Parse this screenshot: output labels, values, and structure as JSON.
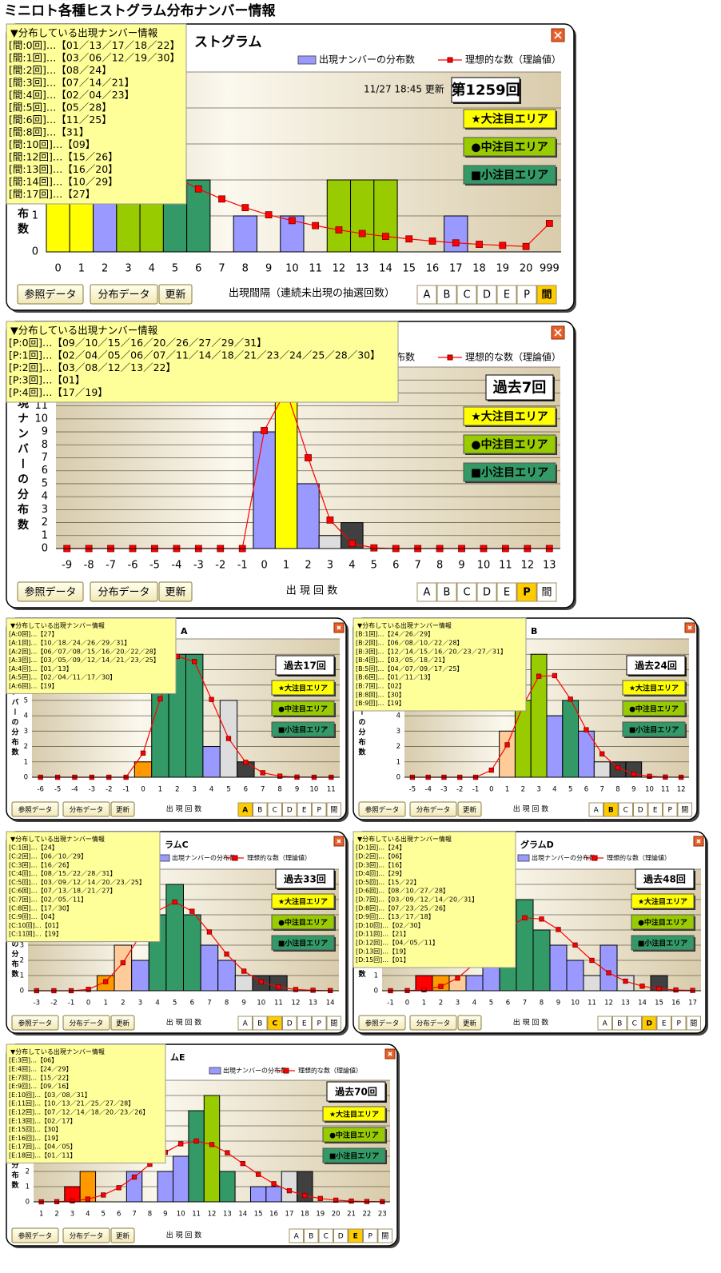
{
  "title": "ミニロト各種ヒストグラム分布ナンバー情報",
  "popup_title": "▼分布している出現ナンバー情報",
  "areas": [
    "★大注目エリア",
    "●中注目エリア",
    "■小注目エリア"
  ],
  "area_colors": [
    "#ffff00",
    "#99cc00",
    "#339966"
  ],
  "buttons": [
    "参照データ",
    "分布データ",
    "更新"
  ],
  "tabs": [
    "A",
    "B",
    "C",
    "D",
    "E",
    "P",
    "間"
  ],
  "chart_data": [
    {
      "type": "bar",
      "title": "ストグラム",
      "update": "11/27 18:45 更新",
      "badge": "第1259回",
      "active_tab": 6,
      "popup": [
        "[間:0回]…【01／13／17／18／22】",
        "[間:1回]…【03／06／12／19／30】",
        "[間:2回]…【08／24】",
        "[間:3回]…【07／14／21】",
        "[間:4回]…【02／04／23】",
        "[間:5回]…【05／28】",
        "[間:6回]…【11／25】",
        "[間:8回]…【31】",
        "[間:10回]…【09】",
        "[間:12回]…【15／26】",
        "[間:13回]…【16／20】",
        "[間:14回]…【10／29】",
        "[間:17回]…【27】"
      ],
      "categories": [
        "0",
        "1",
        "2",
        "3",
        "4",
        "5",
        "6",
        "7",
        "8",
        "9",
        "10",
        "11",
        "12",
        "13",
        "14",
        "15",
        "16",
        "17",
        "18",
        "19",
        "20",
        "999"
      ],
      "series": [
        {
          "name": "出現ナンバーの分布数",
          "color": "#9999ff",
          "values": [
            5,
            5,
            2,
            3,
            3,
            2,
            2,
            0,
            1,
            0,
            1,
            0,
            2,
            2,
            2,
            0,
            0,
            1,
            0,
            0,
            0,
            0
          ],
          "colors": [
            "#ffff00",
            "#ffff00",
            "#9999ff",
            "#99cc00",
            "#99cc00",
            "#339966",
            "#339966",
            "#9999ff",
            "#9999ff",
            "#9999ff",
            "#9999ff",
            "#9999ff",
            "#99cc00",
            "#99cc00",
            "#99cc00",
            "#9999ff",
            "#9999ff",
            "#9999ff",
            "#9999ff",
            "#9999ff",
            "#9999ff",
            "#9999ff"
          ]
        },
        {
          "name": "理想的な数（理論値）",
          "type": "line",
          "color": "#ff0000",
          "values": [
            5.0,
            4.2,
            3.5,
            2.95,
            2.5,
            2.08,
            1.75,
            1.47,
            1.23,
            1.03,
            0.87,
            0.73,
            0.61,
            0.51,
            0.43,
            0.36,
            0.3,
            0.25,
            0.21,
            0.18,
            0.15,
            0.79
          ]
        }
      ],
      "ylim": [
        0,
        5
      ],
      "yticks": [
        0,
        1,
        2,
        3,
        4,
        5
      ],
      "y_label": "出現ナンバーの分布数",
      "x_label": "出現間隔（連続未出現の抽選回数）"
    },
    {
      "type": "bar",
      "title": "",
      "badge": "過去7回",
      "active_tab": 5,
      "popup": [
        "[P:0回]…【09／10／15／16／20／26／27／29／31】",
        "[P:1回]…【02／04／05／06／07／11／14／18／21／23／24／25／28／30】",
        "[P:2回]…【03／08／12／13／22】",
        "[P:3回]…【01】",
        "[P:4回]…【17／19】"
      ],
      "categories": [
        "-9",
        "-8",
        "-7",
        "-6",
        "-5",
        "-4",
        "-3",
        "-2",
        "-1",
        "0",
        "1",
        "2",
        "3",
        "4",
        "5",
        "6",
        "7",
        "8",
        "9",
        "10",
        "11",
        "12",
        "13"
      ],
      "series": [
        {
          "name": "出現ナンバーの分布数",
          "color": "#9999ff",
          "values": [
            0,
            0,
            0,
            0,
            0,
            0,
            0,
            0,
            0,
            9,
            14,
            5,
            1,
            2,
            0,
            0,
            0,
            0,
            0,
            0,
            0,
            0,
            0
          ],
          "colors": [
            "#9999ff",
            "#9999ff",
            "#9999ff",
            "#9999ff",
            "#9999ff",
            "#9999ff",
            "#9999ff",
            "#9999ff",
            "#9999ff",
            "#9999ff",
            "#ffff00",
            "#9999ff",
            "#dddddd",
            "#404040",
            "#9999ff",
            "#9999ff",
            "#9999ff",
            "#9999ff",
            "#9999ff",
            "#9999ff",
            "#9999ff",
            "#9999ff",
            "#9999ff"
          ]
        },
        {
          "name": "理想的な数（理論値）",
          "type": "line",
          "color": "#ff0000",
          "values": [
            0,
            0,
            0,
            0,
            0,
            0,
            0,
            0,
            0,
            9.1,
            12.2,
            7.0,
            2.2,
            0.4,
            0.05,
            0,
            0,
            0,
            0,
            0,
            0,
            0,
            0
          ]
        }
      ],
      "ylim": [
        0,
        14
      ],
      "yticks": [
        0,
        1,
        2,
        3,
        4,
        5,
        6,
        7,
        8,
        9,
        10,
        11,
        12,
        13,
        14
      ],
      "y_label": "出現ナンバーの分布数",
      "x_label": "出 現 回 数"
    },
    {
      "type": "bar",
      "title": "A",
      "badge": "過去17回",
      "active_tab": 0,
      "popup": [
        "[A:0回]…【27】",
        "[A:1回]…【10／18／24／26／29／31】",
        "[A:2回]…【06／07／08／15／16／20／22／28】",
        "[A:3回]…【03／05／09／12／14／21／23／25】",
        "[A:4回]…【01／13】",
        "[A:5回]…【02／04／11／17／30】",
        "[A:6回]…【19】"
      ],
      "categories": [
        "-6",
        "-5",
        "-4",
        "-3",
        "-2",
        "-1",
        "0",
        "1",
        "2",
        "3",
        "4",
        "5",
        "6",
        "7",
        "8",
        "9",
        "10",
        "11"
      ],
      "series": [
        {
          "name": "出現ナンバーの分布数",
          "color": "#9999ff",
          "values": [
            0,
            0,
            0,
            0,
            0,
            0,
            1,
            6,
            8,
            8,
            2,
            5,
            1,
            0,
            0,
            0,
            0,
            0
          ],
          "colors": [
            "#9999ff",
            "#9999ff",
            "#9999ff",
            "#9999ff",
            "#9999ff",
            "#9999ff",
            "#ff9900",
            "#339966",
            "#339966",
            "#339966",
            "#9999ff",
            "#dddddd",
            "#404040",
            "#9999ff",
            "#9999ff",
            "#9999ff",
            "#9999ff",
            "#9999ff"
          ]
        },
        {
          "name": "理想的な数（理論値）",
          "type": "line",
          "color": "#ff0000",
          "values": [
            0,
            0,
            0,
            0,
            0,
            0,
            1.57,
            5.1,
            7.86,
            7.53,
            5.06,
            2.52,
            0.97,
            0.29,
            0.07,
            0.01,
            0,
            0
          ]
        }
      ],
      "ylim": [
        0,
        9
      ],
      "yticks": [
        0,
        1,
        2,
        3,
        4,
        5,
        6,
        7,
        8,
        9
      ],
      "y_label": "出現ナンバーの分布数",
      "x_label": "出 現 回 数"
    },
    {
      "type": "bar",
      "title": "B",
      "badge": "過去24回",
      "active_tab": 1,
      "popup": [
        "[B:1回]…【24／26／29】",
        "[B:2回]…【06／08／10／22／28】",
        "[B:3回]…【12／14／15／16／20／23／27／31】",
        "[B:4回]…【03／05／18／21】",
        "[B:5回]…【04／07／09／17／25】",
        "[B:6回]…【01／11／13】",
        "[B:7回]…【02】",
        "[B:8回]…【30】",
        "[B:9回]…【19】"
      ],
      "categories": [
        "-5",
        "-4",
        "-3",
        "-2",
        "-1",
        "0",
        "1",
        "2",
        "3",
        "4",
        "5",
        "6",
        "7",
        "8",
        "9",
        "10",
        "11",
        "12"
      ],
      "series": [
        {
          "name": "出現ナンバーの分布数",
          "color": "#9999ff",
          "values": [
            0,
            0,
            0,
            0,
            0,
            0,
            3,
            5,
            8,
            4,
            5,
            3,
            1,
            1,
            1,
            0,
            0,
            0
          ],
          "colors": [
            "#9999ff",
            "#9999ff",
            "#9999ff",
            "#9999ff",
            "#9999ff",
            "#9999ff",
            "#ffcc99",
            "#99cc00",
            "#99cc00",
            "#9999ff",
            "#339966",
            "#9999ff",
            "#dddddd",
            "#404040",
            "#404040",
            "#9999ff",
            "#9999ff",
            "#9999ff"
          ]
        },
        {
          "name": "理想的な数（理論値）",
          "type": "line",
          "color": "#ff0000",
          "values": [
            0,
            0,
            0,
            0,
            0,
            0.46,
            2.11,
            4.67,
            6.57,
            6.61,
            5.08,
            3.09,
            1.52,
            0.62,
            0.21,
            0.06,
            0.01,
            0
          ]
        }
      ],
      "ylim": [
        0,
        9
      ],
      "yticks": [
        0,
        1,
        2,
        3,
        4,
        5,
        6,
        7,
        8,
        9
      ],
      "y_label": "出現ナンバーの分布数",
      "x_label": "出 現 回 数"
    },
    {
      "type": "bar",
      "title": "ラムC",
      "badge": "過去33回",
      "active_tab": 2,
      "popup": [
        "[C:1回]…【24】",
        "[C:2回]…【06／10／29】",
        "[C:3回]…【16／26】",
        "[C:4回]…【08／15／22／28／31】",
        "[C:5回]…【03／09／12／14／20／23／25】",
        "[C:6回]…【07／13／18／21／27】",
        "[C:7回]…【02／05／11】",
        "[C:8回]…【17／30】",
        "[C:9回]…【04】",
        "[C:10回]…【01】",
        "[C:11回]…【19】"
      ],
      "categories": [
        "-3",
        "-2",
        "-1",
        "0",
        "1",
        "2",
        "3",
        "4",
        "5",
        "6",
        "7",
        "8",
        "9",
        "10",
        "11",
        "12",
        "13",
        "14"
      ],
      "series": [
        {
          "name": "出現ナンバーの分布数",
          "color": "#9999ff",
          "values": [
            0,
            0,
            0,
            0,
            1,
            3,
            2,
            5,
            7,
            5,
            3,
            2,
            1,
            1,
            1,
            0,
            0,
            0
          ],
          "colors": [
            "#9999ff",
            "#9999ff",
            "#9999ff",
            "#9999ff",
            "#ff9900",
            "#ffcc99",
            "#9999ff",
            "#339966",
            "#339966",
            "#339966",
            "#9999ff",
            "#9999ff",
            "#dddddd",
            "#404040",
            "#404040",
            "#9999ff",
            "#9999ff",
            "#9999ff"
          ]
        },
        {
          "name": "理想的な数（理論値）",
          "type": "line",
          "color": "#ff0000",
          "values": [
            0,
            0,
            0,
            0.09,
            0.6,
            1.84,
            3.65,
            5.25,
            5.84,
            5.23,
            3.87,
            2.41,
            1.29,
            0.59,
            0.24,
            0.08,
            0.03,
            0.01
          ]
        }
      ],
      "ylim": [
        0,
        8
      ],
      "yticks": [
        0,
        1,
        2,
        3,
        4,
        5,
        6,
        7,
        8
      ],
      "y_label": "出現ナンバーの分布数",
      "x_label": "出 現 回 数"
    },
    {
      "type": "bar",
      "title": "グラムD",
      "badge": "過去48回",
      "active_tab": 3,
      "popup": [
        "[D:1回]…【24】",
        "[D:2回]…【06】",
        "[D:3回]…【16】",
        "[D:4回]…【29】",
        "[D:5回]…【15／22】",
        "[D:6回]…【08／10／27／28】",
        "[D:7回]…【03／09／12／14／20／31】",
        "[D:8回]…【07／23／25／26】",
        "[D:9回]…【13／17／18】",
        "[D:10回]…【02／30】",
        "[D:11回]…【21】",
        "[D:12回]…【04／05／11】",
        "[D:13回]…【19】",
        "[D:15回]…【01】"
      ],
      "categories": [
        "-1",
        "0",
        "1",
        "2",
        "3",
        "4",
        "5",
        "6",
        "7",
        "8",
        "9",
        "10",
        "11",
        "12",
        "13",
        "14",
        "15",
        "16",
        "17"
      ],
      "series": [
        {
          "name": "出現ナンバーの分布数",
          "color": "#9999ff",
          "values": [
            0,
            0,
            1,
            1,
            1,
            1,
            2,
            4,
            6,
            4,
            3,
            2,
            1,
            3,
            1,
            0,
            1,
            0,
            0
          ],
          "colors": [
            "#9999ff",
            "#9999ff",
            "#ff0000",
            "#ff9900",
            "#ffcc99",
            "#9999ff",
            "#9999ff",
            "#339966",
            "#339966",
            "#339966",
            "#9999ff",
            "#9999ff",
            "#dddddd",
            "#9999ff",
            "#dddddd",
            "#9999ff",
            "#404040",
            "#9999ff",
            "#9999ff"
          ]
        },
        {
          "name": "理想的な数（理論値）",
          "type": "line",
          "color": "#ff0000",
          "values": [
            0,
            0.01,
            0.06,
            0.28,
            0.83,
            1.79,
            3.03,
            4.17,
            4.8,
            4.72,
            4.03,
            3.01,
            2.0,
            1.18,
            0.63,
            0.3,
            0.13,
            0.05,
            0.02
          ]
        }
      ],
      "ylim": [
        0,
        8
      ],
      "yticks": [
        0,
        1,
        2,
        3,
        4,
        5,
        6,
        7,
        8
      ],
      "y_label": "出現ナンバーの分布数",
      "x_label": "出 現 回 数"
    },
    {
      "type": "bar",
      "title": "ムE",
      "badge": "過去70回",
      "active_tab": 4,
      "popup": [
        "[E:3回]…【06】",
        "[E:4回]…【24／29】",
        "[E:7回]…【15／22】",
        "[E:9回]…【09／16】",
        "[E:10回]…【03／08／31】",
        "[E:11回]…【10／13／21／25／27／28】",
        "[E:12回]…【07／12／14／18／20／23／26】",
        "[E:13回]…【02／17】",
        "[E:15回]…【30】",
        "[E:16回]…【19】",
        "[E:17回]…【04／05】",
        "[E:18回]…【01／11】"
      ],
      "categories": [
        "1",
        "2",
        "3",
        "4",
        "5",
        "6",
        "7",
        "8",
        "9",
        "10",
        "11",
        "12",
        "13",
        "14",
        "15",
        "16",
        "17",
        "18",
        "19",
        "20",
        "21",
        "22",
        "23"
      ],
      "series": [
        {
          "name": "出現ナンバーの分布数",
          "color": "#9999ff",
          "values": [
            0,
            0,
            1,
            2,
            0,
            0,
            2,
            0,
            2,
            3,
            6,
            7,
            2,
            0,
            1,
            1,
            2,
            2,
            0,
            0,
            0,
            0,
            0
          ],
          "colors": [
            "#9999ff",
            "#9999ff",
            "#ff0000",
            "#ff9900",
            "#9999ff",
            "#9999ff",
            "#9999ff",
            "#9999ff",
            "#9999ff",
            "#9999ff",
            "#339966",
            "#99cc00",
            "#339966",
            "#9999ff",
            "#9999ff",
            "#9999ff",
            "#dddddd",
            "#404040",
            "#9999ff",
            "#9999ff",
            "#9999ff",
            "#9999ff",
            "#9999ff"
          ]
        },
        {
          "name": "理想的な数（理論値）",
          "type": "line",
          "color": "#ff0000",
          "values": [
            0,
            0.01,
            0.06,
            0.18,
            0.45,
            0.93,
            1.63,
            2.47,
            3.26,
            3.82,
            4.0,
            3.77,
            3.23,
            2.52,
            1.81,
            1.19,
            0.73,
            0.41,
            0.22,
            0.11,
            0.05,
            0.02,
            0.01
          ]
        }
      ],
      "ylim": [
        0,
        8
      ],
      "yticks": [
        0,
        1,
        2,
        3,
        4,
        5,
        6,
        7,
        8
      ],
      "y_label": "出現ナンバーの分布数",
      "x_label": "出 現 回 数"
    }
  ]
}
